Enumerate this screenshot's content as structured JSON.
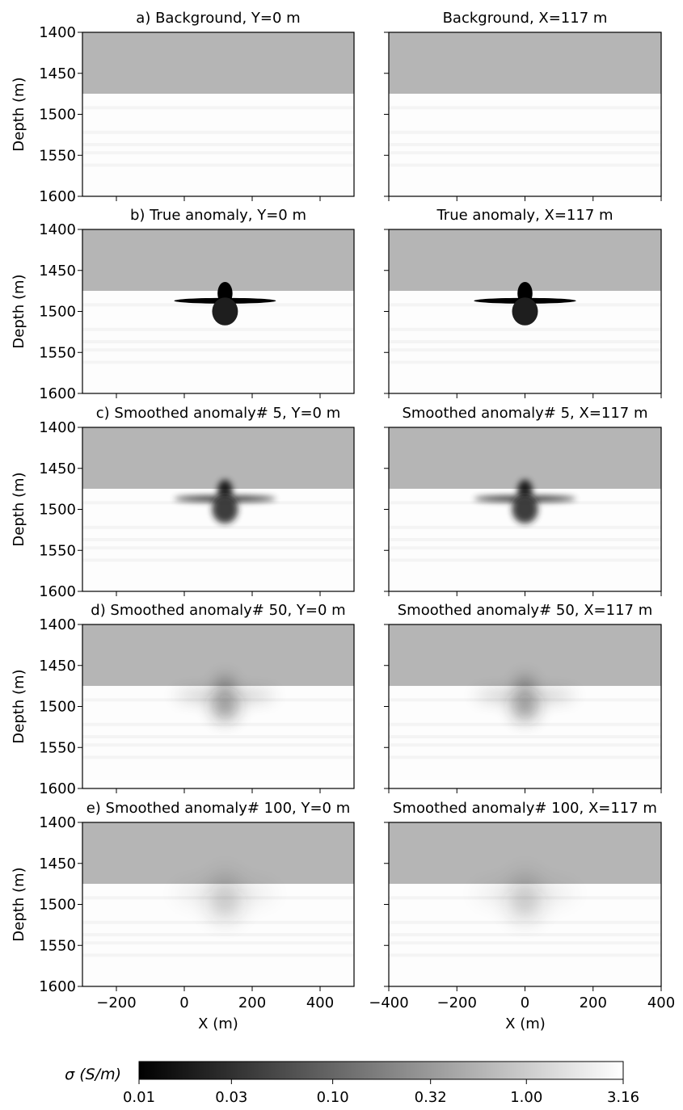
{
  "figure": {
    "cbar_label": "σ (S/m)",
    "x_label": "X (m)",
    "y_label": "Depth (m)"
  },
  "chart_data": {
    "type": "heatmap",
    "colormap": "gray",
    "color_scale": "log",
    "color_range": [
      0.01,
      3.16
    ],
    "colorbar_ticks": [
      "0.01",
      "0.03",
      "0.10",
      "0.32",
      "1.00",
      "3.16"
    ],
    "rows": [
      {
        "left_title": "a) Background, Y=0 m",
        "right_title": "Background, X=117 m",
        "anomaly": {
          "center_depth": 1490,
          "strength": 0,
          "blur": 0
        }
      },
      {
        "left_title": "b) True anomaly, Y=0 m",
        "right_title": "True anomaly, X=117 m",
        "anomaly": {
          "center_depth": 1490,
          "strength": 1.0,
          "blur": 0
        }
      },
      {
        "left_title": "c) Smoothed anomaly# 5, Y=0 m",
        "right_title": "Smoothed anomaly# 5, X=117 m",
        "anomaly": {
          "center_depth": 1490,
          "strength": 0.85,
          "blur": 1
        }
      },
      {
        "left_title": "d) Smoothed anomaly# 50, Y=0 m",
        "right_title": "Smoothed anomaly# 50, X=117 m",
        "anomaly": {
          "center_depth": 1490,
          "strength": 0.45,
          "blur": 2
        }
      },
      {
        "left_title": "e) Smoothed anomaly# 100, Y=0 m",
        "right_title": "Smoothed anomaly# 100, X=117 m",
        "anomaly": {
          "center_depth": 1490,
          "strength": 0.3,
          "blur": 3
        }
      }
    ],
    "left_panel": {
      "x_axis": {
        "label": "X (m)",
        "range": [
          -300,
          500
        ],
        "ticks": [
          -200,
          0,
          200,
          400
        ],
        "anomaly_center_x": 120
      },
      "y_axis": {
        "label": "Depth (m)",
        "range": [
          1600,
          1400
        ],
        "ticks": [
          1400,
          1450,
          1500,
          1550,
          1600
        ]
      }
    },
    "right_panel": {
      "x_axis": {
        "label": "X (m)",
        "range": [
          -400,
          400
        ],
        "ticks": [
          -400,
          -200,
          0,
          200,
          400
        ],
        "anomaly_center_x": 0
      },
      "y_axis": {
        "range": [
          1600,
          1400
        ],
        "ticks": [
          1400,
          1450,
          1500,
          1550,
          1600
        ]
      }
    },
    "background_layers": [
      {
        "top": 1400,
        "bottom": 1475,
        "sigma": 0.6
      },
      {
        "top": 1475,
        "bottom": 1600,
        "sigma": 3.0
      }
    ]
  }
}
